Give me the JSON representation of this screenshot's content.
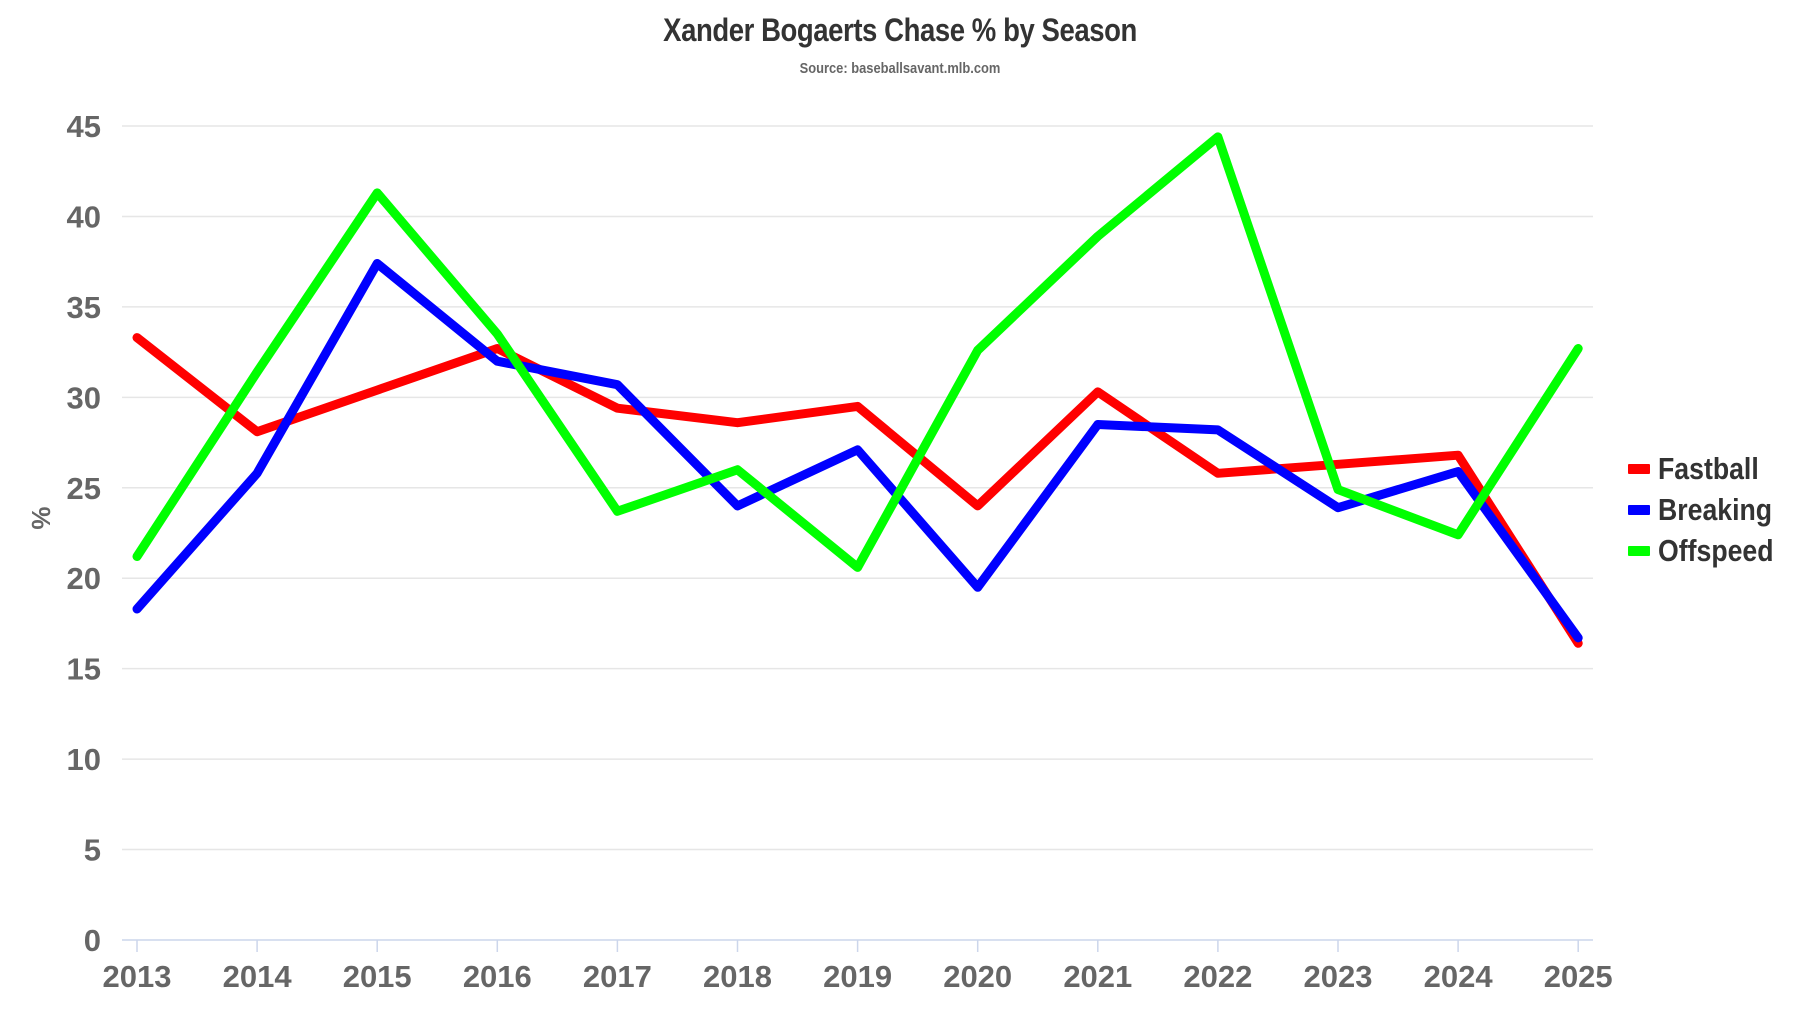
{
  "header": {
    "title": "Xander Bogaerts Chase % by Season",
    "subtitle": "Source: baseballsavant.mlb.com"
  },
  "legend": {
    "items": [
      {
        "label": "Fastball",
        "color": "#ff0000"
      },
      {
        "label": "Breaking",
        "color": "#0000ff"
      },
      {
        "label": "Offspeed",
        "color": "#00ff00"
      }
    ]
  },
  "axes": {
    "ylabel": "%",
    "yticks": [
      "0",
      "5",
      "10",
      "15",
      "20",
      "25",
      "30",
      "35",
      "40",
      "45"
    ],
    "xticks": [
      "2013",
      "2014",
      "2015",
      "2016",
      "2017",
      "2018",
      "2019",
      "2020",
      "2021",
      "2022",
      "2023",
      "2024",
      "2025"
    ]
  },
  "chart_data": {
    "type": "line",
    "title": "Xander Bogaerts Chase % by Season",
    "subtitle": "Source: baseballsavant.mlb.com",
    "xlabel": "",
    "ylabel": "%",
    "x": [
      2013,
      2014,
      2015,
      2016,
      2017,
      2018,
      2019,
      2020,
      2021,
      2022,
      2023,
      2024,
      2025
    ],
    "ylim": [
      0,
      45
    ],
    "ytick_step": 5,
    "grid": true,
    "legend_position": "right",
    "series": [
      {
        "name": "Fastball",
        "color": "#ff0000",
        "values": [
          33.3,
          28.1,
          30.4,
          32.7,
          29.4,
          28.6,
          29.5,
          24.0,
          30.3,
          25.8,
          26.3,
          26.8,
          16.4
        ]
      },
      {
        "name": "Breaking",
        "color": "#0000ff",
        "values": [
          18.3,
          25.8,
          37.4,
          32.0,
          30.7,
          24.0,
          27.1,
          19.5,
          28.5,
          28.2,
          23.9,
          25.9,
          16.7
        ]
      },
      {
        "name": "Offspeed",
        "color": "#00ff00",
        "values": [
          21.2,
          31.4,
          41.3,
          33.5,
          23.7,
          26.0,
          20.6,
          32.6,
          38.9,
          44.4,
          24.9,
          22.4,
          32.7
        ]
      }
    ]
  }
}
